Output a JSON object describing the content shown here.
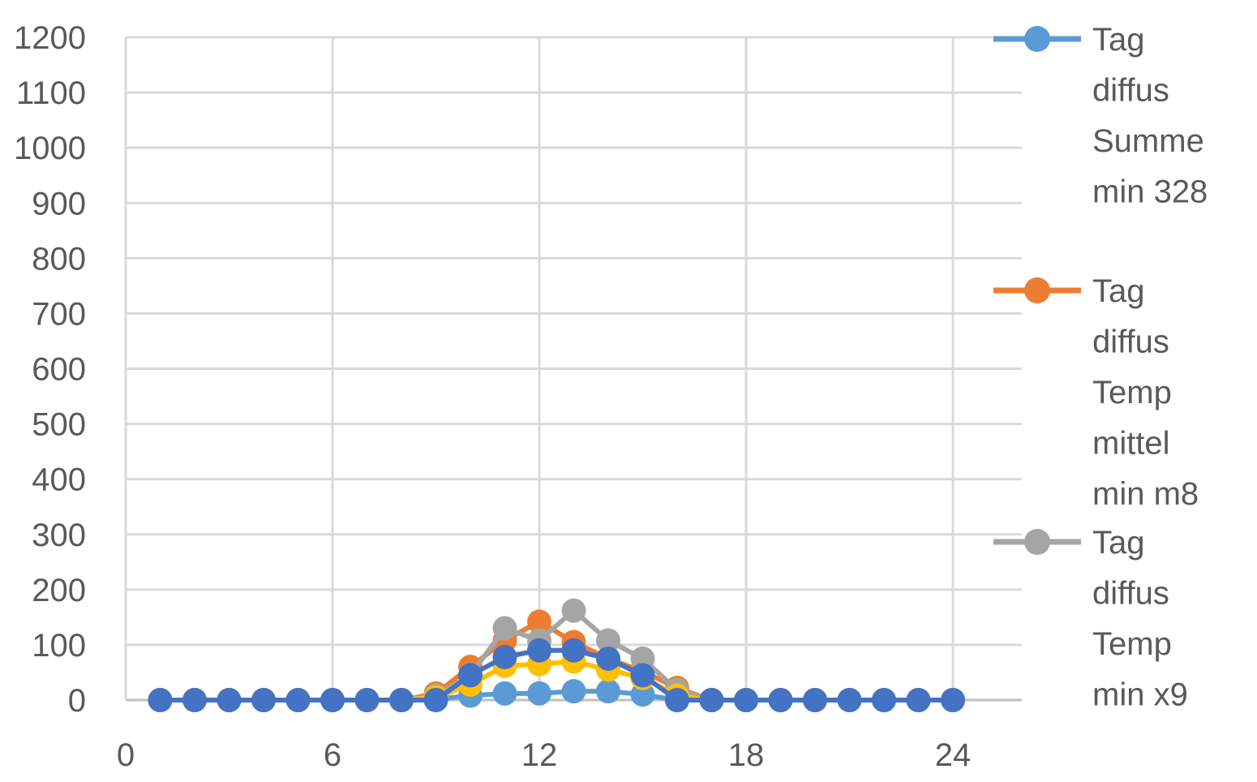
{
  "chart_data": {
    "type": "line",
    "title": "",
    "xlabel": "",
    "ylabel": "",
    "xlim": [
      0,
      26
    ],
    "ylim": [
      0,
      1200
    ],
    "xticks": [
      0,
      6,
      12,
      18,
      24
    ],
    "yticks": [
      0,
      100,
      200,
      300,
      400,
      500,
      600,
      700,
      800,
      900,
      1000,
      1100,
      1200
    ],
    "grid": true,
    "legend_position": "right",
    "x": [
      1,
      2,
      3,
      4,
      5,
      6,
      7,
      8,
      9,
      10,
      11,
      12,
      13,
      14,
      15,
      16,
      17,
      18,
      19,
      20,
      21,
      22,
      23,
      24
    ],
    "series": [
      {
        "name": "Tag diffus Summe min 328",
        "color": "#5B9BD5",
        "legend_lines": [
          "Tag",
          "diffus",
          "Summe",
          "min 328"
        ],
        "values": [
          0,
          0,
          0,
          0,
          0,
          0,
          0,
          0,
          2,
          8,
          12,
          12,
          16,
          16,
          10,
          0,
          0,
          0,
          0,
          0,
          0,
          0,
          0,
          0
        ]
      },
      {
        "name": "Tag diffus Temp mittel min m8",
        "color": "#ED7D31",
        "legend_lines": [
          "Tag",
          "diffus",
          "Temp",
          "mittel",
          "min m8"
        ],
        "values": [
          0,
          0,
          0,
          0,
          0,
          0,
          0,
          0,
          12,
          60,
          108,
          142,
          105,
          75,
          52,
          22,
          0,
          0,
          0,
          0,
          0,
          0,
          0,
          0
        ]
      },
      {
        "name": "Tag diffus Temp min x9",
        "color": "#A5A5A5",
        "legend_lines": [
          "Tag",
          "diffus",
          "Temp",
          "min x9"
        ],
        "values": [
          0,
          0,
          0,
          0,
          0,
          0,
          0,
          0,
          8,
          45,
          130,
          108,
          162,
          108,
          75,
          18,
          0,
          0,
          0,
          0,
          0,
          0,
          0,
          0
        ]
      },
      {
        "name": "",
        "color": "#FFC000",
        "legend_lines": [],
        "values": [
          0,
          0,
          0,
          0,
          0,
          0,
          0,
          0,
          5,
          28,
          62,
          65,
          70,
          55,
          40,
          8,
          0,
          0,
          0,
          0,
          0,
          0,
          0,
          0
        ]
      },
      {
        "name": "",
        "color": "#4472C4",
        "legend_lines": [],
        "values": [
          0,
          0,
          0,
          0,
          0,
          0,
          0,
          0,
          0,
          45,
          78,
          90,
          90,
          75,
          45,
          0,
          0,
          0,
          0,
          0,
          0,
          0,
          0,
          0
        ]
      }
    ]
  }
}
